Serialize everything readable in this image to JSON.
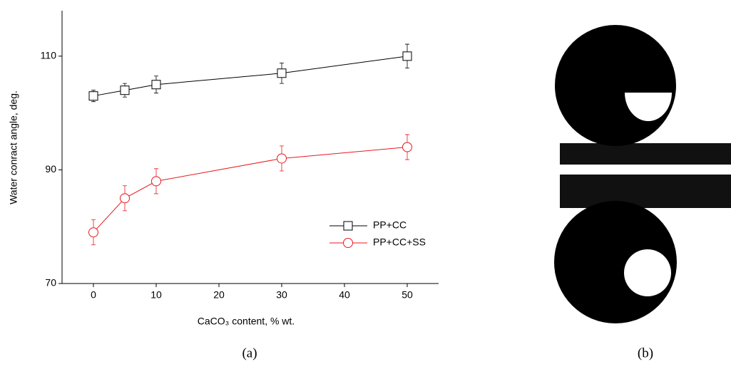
{
  "chart_data": {
    "type": "line",
    "y_label": "Water conract angle, deg.",
    "x_label": "CaCO₃ content, % wt.",
    "x": [
      0,
      5,
      10,
      30,
      50
    ],
    "series": [
      {
        "name": "PP+CC",
        "color": "#000000",
        "marker": "square",
        "values": [
          103,
          104,
          105,
          107,
          110
        ],
        "errors": [
          1,
          1.2,
          1.5,
          1.8,
          2.1
        ]
      },
      {
        "name": "PP+CC+SS",
        "color": "#e8191e",
        "marker": "circle",
        "values": [
          79,
          85,
          88,
          92,
          94
        ],
        "errors": [
          2.2,
          2.2,
          2.2,
          2.2,
          2.2
        ]
      }
    ],
    "xlim": [
      -5,
      55
    ],
    "ylim": [
      70,
      118
    ],
    "xticks": [
      0,
      10,
      20,
      30,
      40,
      50
    ],
    "yticks": [
      70,
      90,
      110
    ],
    "grid": false,
    "legend": "lower right"
  },
  "panel_labels": [
    "(a)",
    "(b)"
  ]
}
